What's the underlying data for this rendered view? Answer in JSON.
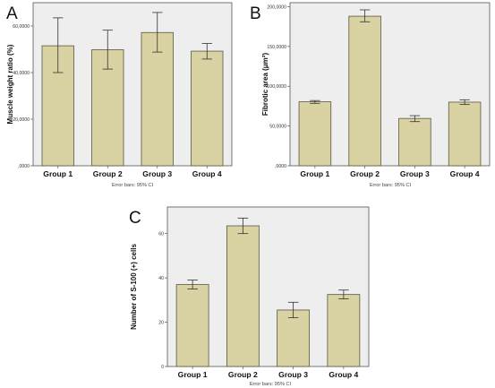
{
  "colors": {
    "plot_bg": "#eeeeee",
    "bar_fill": "#d9d2a2",
    "bar_stroke": "#5a5640",
    "axis": "#555555",
    "error_bar": "#333333"
  },
  "chart_data": [
    {
      "panel": "A",
      "type": "bar",
      "categories": [
        "Group 1",
        "Group 2",
        "Group 3",
        "Group 4"
      ],
      "values": [
        51.5,
        49.8,
        57.2,
        49.2
      ],
      "error_low": [
        40.0,
        41.5,
        48.8,
        45.8
      ],
      "error_high": [
        63.5,
        58.2,
        65.8,
        52.5
      ],
      "ylabel": "Muscle weight ratio (%)",
      "yticks": [
        0,
        20,
        40,
        60
      ],
      "ytick_labels": [
        ",0000",
        "20,0000",
        "40,0000",
        "60,0000"
      ],
      "ylim": [
        0,
        70
      ],
      "note": "Error bars: 95% CI"
    },
    {
      "panel": "B",
      "type": "bar",
      "categories": [
        "Group 1",
        "Group 2",
        "Group 3",
        "Group 4"
      ],
      "values": [
        80500,
        188000,
        59500,
        80000
      ],
      "error_low": [
        78500,
        181000,
        55500,
        77000
      ],
      "error_high": [
        82000,
        196000,
        63000,
        83000
      ],
      "ylabel": "Fibrotic area (μm²)",
      "yticks": [
        0,
        50000,
        100000,
        150000,
        200000
      ],
      "ytick_labels": [
        ",0000",
        "50,0000",
        "100,0000",
        "150,0000",
        "200,0000"
      ],
      "ylim": [
        0,
        205000
      ],
      "note": "Error bars: 95% CI"
    },
    {
      "panel": "C",
      "type": "bar",
      "categories": [
        "Group 1",
        "Group 2",
        "Group 3",
        "Group 4"
      ],
      "values": [
        37,
        63.5,
        25.5,
        32.5
      ],
      "error_low": [
        35,
        60,
        22,
        30.5
      ],
      "error_high": [
        39,
        67,
        29,
        34.5
      ],
      "ylabel": "Number of S-100 (+) cells",
      "yticks": [
        0,
        20,
        40,
        60
      ],
      "ytick_labels": [
        "0",
        "20",
        "40",
        "60"
      ],
      "ylim": [
        0,
        72
      ],
      "note": "Error bars: 95% CI"
    }
  ]
}
